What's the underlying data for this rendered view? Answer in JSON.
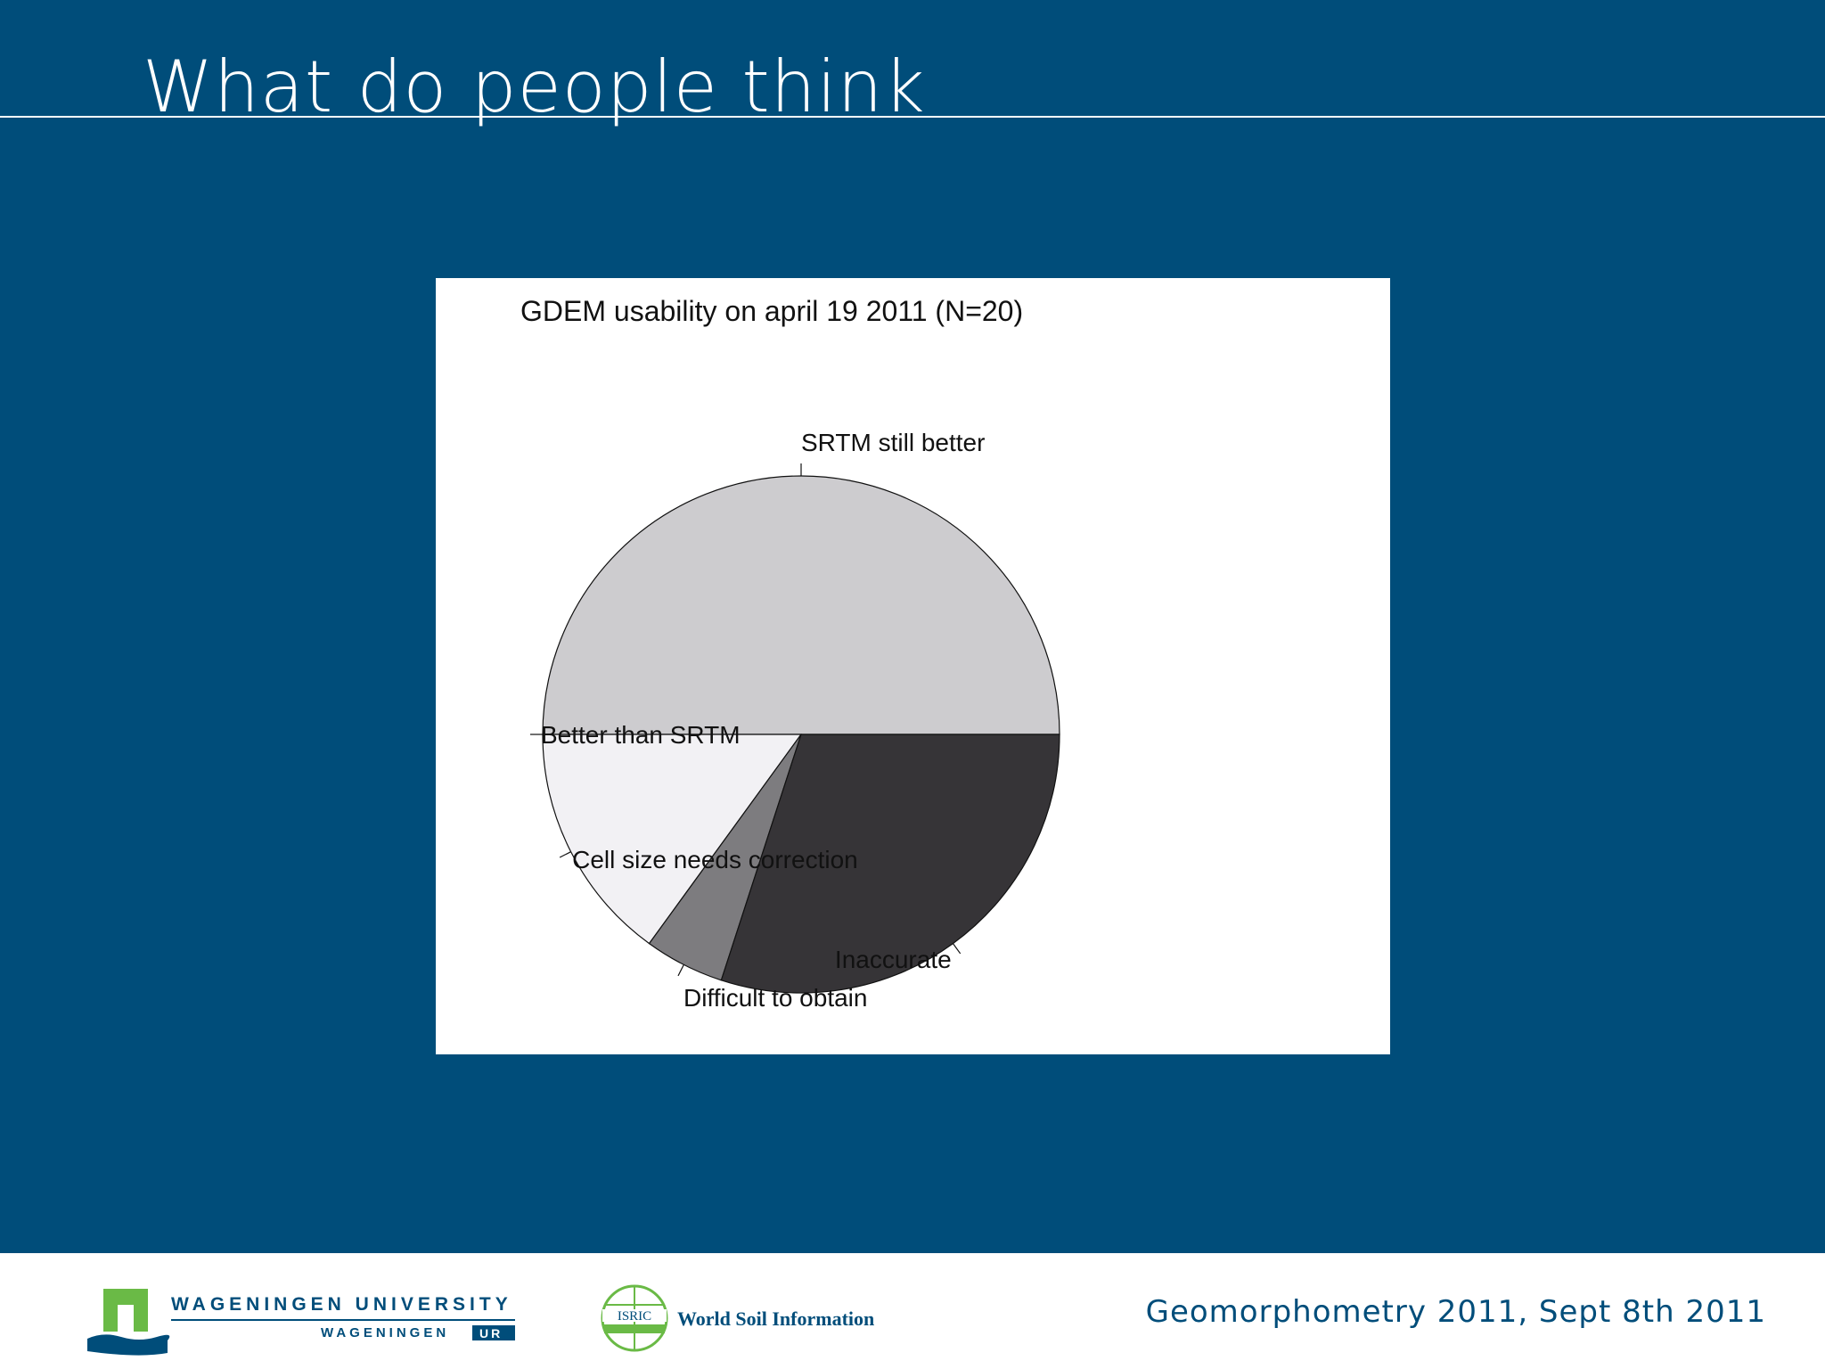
{
  "slide": {
    "title": "What do people think",
    "footer_text": "Geomorphometry 2011, Sept 8th 2011"
  },
  "logos": {
    "wur_line1": "WAGENINGEN UNIVERSITY",
    "wur_line2_a": "WAGENINGEN",
    "wur_line2_b": "UR",
    "isric_badge": "ISRIC",
    "isric_name": "World Soil Information"
  },
  "colors": {
    "background": "#004d7a",
    "slice_srtm_still_better": "#cdcccf",
    "slice_better_than_srtm": "#ffffff",
    "slice_cell_size": "#f2f1f4",
    "slice_difficult": "#7d7c7f",
    "slice_inaccurate": "#363437",
    "wur_green": "#6aba46"
  },
  "chart_data": {
    "type": "pie",
    "title": "GDEM usability on april 19 2011  (N=20)",
    "slices": [
      {
        "label": "SRTM still better",
        "value": 10
      },
      {
        "label": "Better than SRTM",
        "value": 0
      },
      {
        "label": "Cell size needs correction",
        "value": 3
      },
      {
        "label": "Difficult to obtain",
        "value": 1
      },
      {
        "label": "Inaccurate",
        "value": 6
      }
    ],
    "start_angle_deg": 0,
    "direction": "counterclockwise",
    "total": 20
  }
}
